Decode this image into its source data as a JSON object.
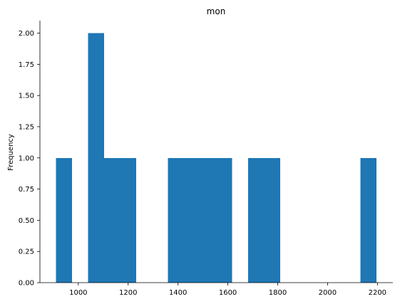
{
  "chart_data": {
    "type": "bar",
    "title": "mon",
    "xlabel": "",
    "ylabel": "Frequency",
    "xlim": [
      846,
      2262
    ],
    "ylim": [
      0,
      2.1
    ],
    "bin_width": 64.3,
    "bins": [
      {
        "x_start": 910.0,
        "count": 1
      },
      {
        "x_start": 974.3,
        "count": 0
      },
      {
        "x_start": 1038.6,
        "count": 2
      },
      {
        "x_start": 1102.9,
        "count": 1
      },
      {
        "x_start": 1167.2,
        "count": 1
      },
      {
        "x_start": 1231.5,
        "count": 0
      },
      {
        "x_start": 1295.8,
        "count": 0
      },
      {
        "x_start": 1360.1,
        "count": 1
      },
      {
        "x_start": 1424.4,
        "count": 1
      },
      {
        "x_start": 1488.7,
        "count": 1
      },
      {
        "x_start": 1553.0,
        "count": 1
      },
      {
        "x_start": 1617.3,
        "count": 0
      },
      {
        "x_start": 1681.6,
        "count": 1
      },
      {
        "x_start": 1745.9,
        "count": 1
      },
      {
        "x_start": 1810.2,
        "count": 0
      },
      {
        "x_start": 1874.5,
        "count": 0
      },
      {
        "x_start": 1938.8,
        "count": 0
      },
      {
        "x_start": 2003.1,
        "count": 0
      },
      {
        "x_start": 2067.4,
        "count": 0
      },
      {
        "x_start": 2131.7,
        "count": 1
      }
    ],
    "xticks": [
      1000,
      1200,
      1400,
      1600,
      1800,
      2000,
      2200
    ],
    "xtick_labels": [
      "1000",
      "1200",
      "1400",
      "1600",
      "1800",
      "2000",
      "2200"
    ],
    "yticks": [
      0,
      0.25,
      0.5,
      0.75,
      1.0,
      1.25,
      1.5,
      1.75,
      2.0
    ],
    "ytick_labels": [
      "0.00",
      "0.25",
      "0.50",
      "0.75",
      "1.00",
      "1.25",
      "1.50",
      "1.75",
      "2.00"
    ],
    "bar_color": "#1f77b4",
    "grid": false,
    "spines": [
      "left",
      "bottom"
    ]
  }
}
